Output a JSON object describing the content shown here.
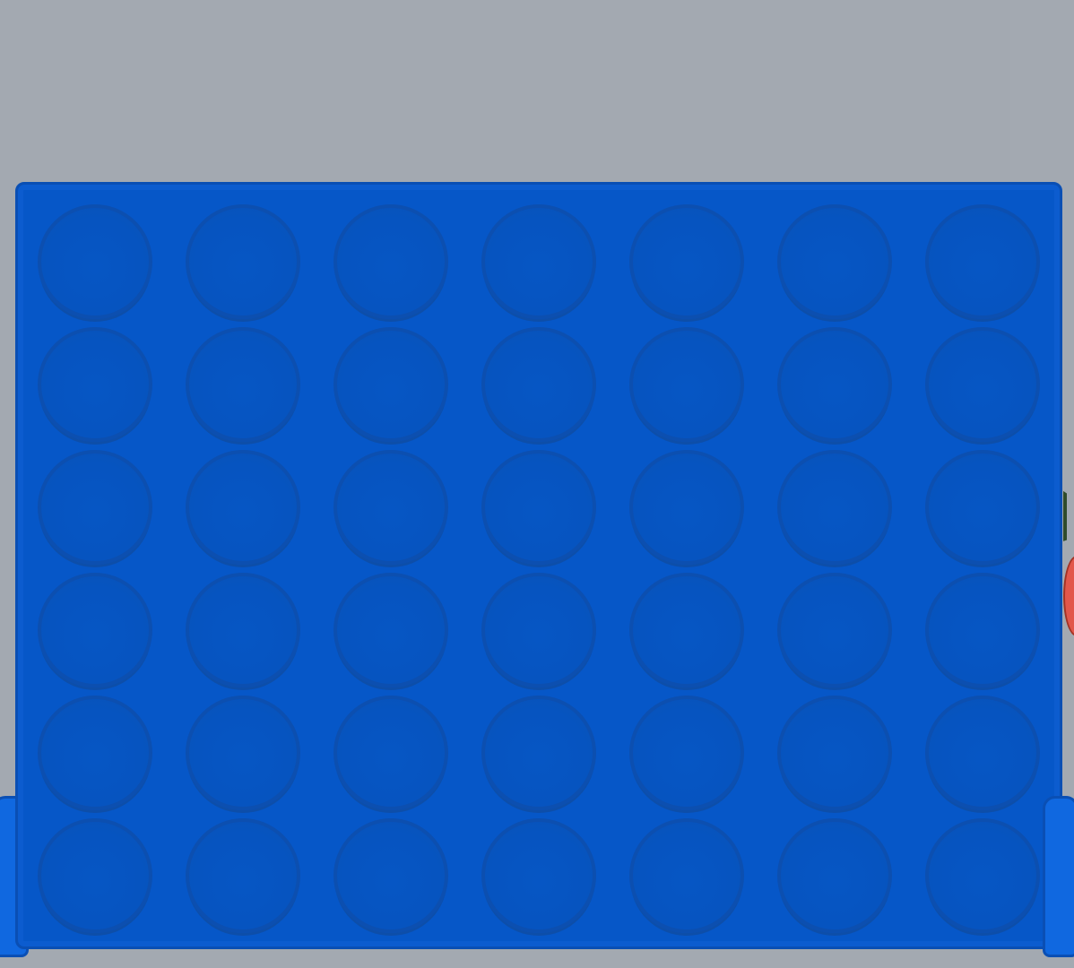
{
  "game": {
    "name": "",
    "grid": {
      "columns": 7,
      "rows": 6,
      "cells": [
        [
          "empty",
          "empty",
          "empty",
          "empty",
          "empty",
          "empty",
          "empty"
        ],
        [
          "empty",
          "empty",
          "empty",
          "empty",
          "empty",
          "empty",
          "empty"
        ],
        [
          "empty",
          "empty",
          "empty",
          "empty",
          "empty",
          "empty",
          "empty"
        ],
        [
          "empty",
          "empty",
          "empty",
          "empty",
          "empty",
          "empty",
          "empty"
        ],
        [
          "empty",
          "empty",
          "empty",
          "empty",
          "empty",
          "empty",
          "empty"
        ],
        [
          "empty",
          "empty",
          "empty",
          "empty",
          "empty",
          "empty",
          "empty"
        ]
      ]
    },
    "colors": {
      "background": "#a3a9b1",
      "board": "#0657c8",
      "board_border": "#0a4fb4",
      "piece_red": "#e2574b",
      "leaf": "#2f4b2a"
    },
    "decor": {
      "edge_item_icon": "strawberry-icon"
    }
  }
}
